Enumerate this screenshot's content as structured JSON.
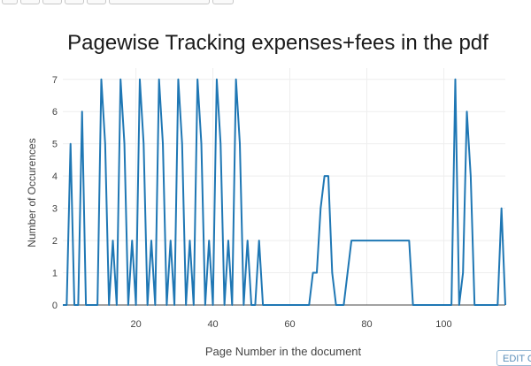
{
  "edit_chart_label": "EDIT CHART",
  "chart_data": {
    "type": "line",
    "title": "Pagewise Tracking expenses+fees in the pdf",
    "xlabel": "Page Number in the document",
    "ylabel": "Number of Occurences",
    "xlim": [
      1,
      116
    ],
    "ylim": [
      0,
      7.35
    ],
    "xticks": [
      20,
      40,
      60,
      80,
      100
    ],
    "yticks": [
      0,
      1,
      2,
      3,
      4,
      5,
      6,
      7
    ],
    "grid": true,
    "line_color": "#1f77b4",
    "series": [
      {
        "x": [
          1,
          2,
          3,
          4,
          5,
          6,
          7,
          8,
          9,
          10,
          11,
          12,
          13,
          14,
          15,
          16,
          17,
          18,
          19,
          20,
          21,
          22,
          23,
          24,
          25,
          26,
          27,
          28,
          29,
          30,
          31,
          32,
          33,
          34,
          35,
          36,
          37,
          38,
          39,
          40,
          41,
          42,
          43,
          44,
          45,
          46,
          47,
          48,
          49,
          50,
          51,
          52,
          53,
          54,
          55,
          56,
          57,
          58,
          59,
          60,
          61,
          62,
          63,
          64,
          65,
          66,
          67,
          68,
          69,
          70,
          71,
          72,
          73,
          74,
          75,
          76,
          77,
          78,
          79,
          80,
          81,
          82,
          83,
          84,
          85,
          86,
          87,
          88,
          89,
          90,
          91,
          92,
          93,
          94,
          95,
          96,
          97,
          98,
          99,
          100,
          101,
          102,
          103,
          104,
          105,
          106,
          107,
          108,
          109,
          110,
          111,
          112,
          113,
          114,
          115,
          116
        ],
        "y": [
          0,
          0,
          5,
          0,
          0,
          6,
          0,
          0,
          0,
          0,
          7,
          5,
          0,
          2,
          0,
          7,
          5,
          0,
          2,
          0,
          7,
          5,
          0,
          2,
          0,
          7,
          5,
          0,
          2,
          0,
          7,
          5,
          0,
          2,
          0,
          7,
          5,
          0,
          2,
          0,
          7,
          5,
          0,
          2,
          0,
          7,
          5,
          0,
          2,
          0,
          0,
          2,
          0,
          0,
          0,
          0,
          0,
          0,
          0,
          0,
          0,
          0,
          0,
          0,
          0,
          1,
          1,
          3,
          4,
          4,
          1,
          0,
          0,
          0,
          1,
          2,
          2,
          2,
          2,
          2,
          2,
          2,
          2,
          2,
          2,
          2,
          2,
          2,
          2,
          2,
          2,
          0,
          0,
          0,
          0,
          0,
          0,
          0,
          0,
          0,
          0,
          0,
          7,
          0,
          1,
          6,
          4,
          0,
          0,
          0,
          0,
          0,
          0,
          0,
          3,
          0
        ]
      }
    ]
  }
}
